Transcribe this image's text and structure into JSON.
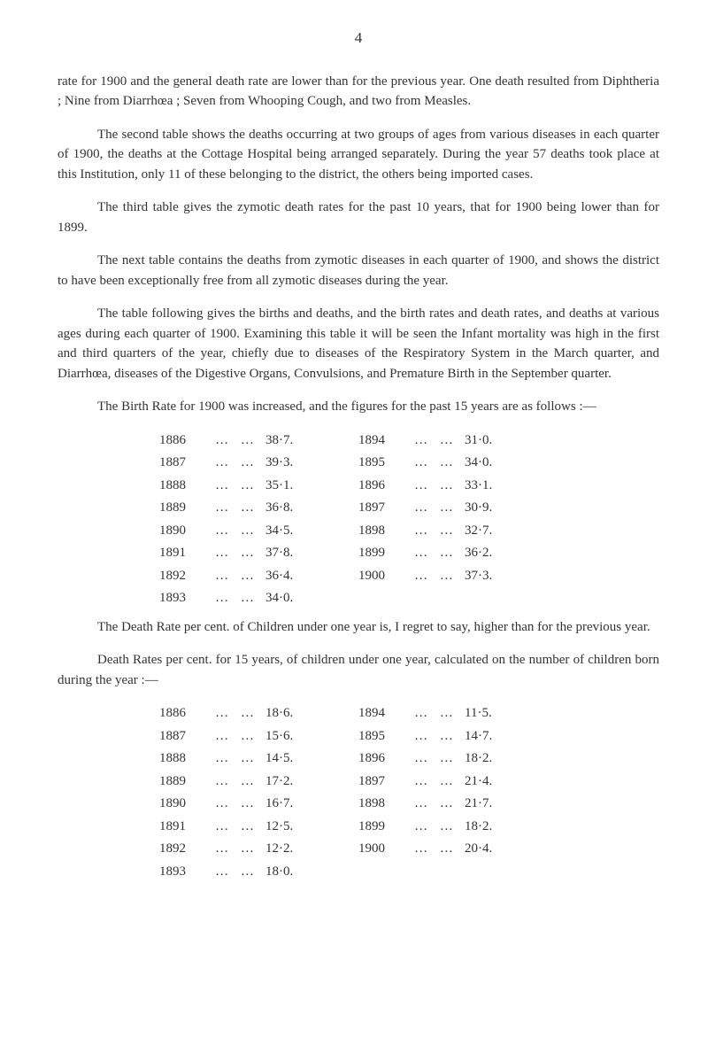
{
  "pageNumber": "4",
  "paragraphs": [
    "rate for 1900 and the general death rate are lower than for the previous year. One death resulted from Diphtheria ; Nine from Diarrhœa ; Seven from Whooping Cough, and two from Measles.",
    "The second table shows the deaths occurring at two groups of ages from various diseases in each quarter of 1900, the deaths at the Cottage Hospital being arranged separately. During the year 57 deaths took place at this Institution, only 11 of these belonging to the district, the others being imported cases.",
    "The third table gives the zymotic death rates for the past 10 years, that for 1900 being lower than for 1899.",
    "The next table contains the deaths from zymotic diseases in each quarter of 1900, and shows the district to have been exceptionally free from all zymotic diseases during the year.",
    "The table following gives the births and deaths, and the birth rates and death rates, and deaths at various ages during each quarter of 1900. Examining this table it will be seen the Infant mortality was high in the first and third quarters of the year, chiefly due to diseases of the Respiratory System in the March quarter, and Diarrhœa, diseases of the Digestive Organs, Convulsions, and Premature Birth in the September quarter.",
    "The Birth Rate for 1900 was increased, and the figures for the past 15 years are as follows :—",
    "The Death Rate per cent. of Children under one year is, I regret to say, higher than for the previous year.",
    "Death Rates per cent. for 15 years, of children under one year, calculated on the number of children born during the year :—"
  ],
  "birthRateTable": {
    "rows": [
      {
        "year1": "1886",
        "value1": "38·7.",
        "year2": "1894",
        "value2": "31·0."
      },
      {
        "year1": "1887",
        "value1": "39·3.",
        "year2": "1895",
        "value2": "34·0."
      },
      {
        "year1": "1888",
        "value1": "35·1.",
        "year2": "1896",
        "value2": "33·1."
      },
      {
        "year1": "1889",
        "value1": "36·8.",
        "year2": "1897",
        "value2": "30·9."
      },
      {
        "year1": "1890",
        "value1": "34·5.",
        "year2": "1898",
        "value2": "32·7."
      },
      {
        "year1": "1891",
        "value1": "37·8.",
        "year2": "1899",
        "value2": "36·2."
      },
      {
        "year1": "1892",
        "value1": "36·4.",
        "year2": "1900",
        "value2": "37·3."
      },
      {
        "year1": "1893",
        "value1": "34·0.",
        "year2": "",
        "value2": ""
      }
    ]
  },
  "deathRateTable": {
    "rows": [
      {
        "year1": "1886",
        "value1": "18·6.",
        "year2": "1894",
        "value2": "11·5."
      },
      {
        "year1": "1887",
        "value1": "15·6.",
        "year2": "1895",
        "value2": "14·7."
      },
      {
        "year1": "1888",
        "value1": "14·5.",
        "year2": "1896",
        "value2": "18·2."
      },
      {
        "year1": "1889",
        "value1": "17·2.",
        "year2": "1897",
        "value2": "21·4."
      },
      {
        "year1": "1890",
        "value1": "16·7.",
        "year2": "1898",
        "value2": "21·7."
      },
      {
        "year1": "1891",
        "value1": "12·5.",
        "year2": "1899",
        "value2": "18·2."
      },
      {
        "year1": "1892",
        "value1": "12·2.",
        "year2": "1900",
        "value2": "20·4."
      },
      {
        "year1": "1893",
        "value1": "18·0.",
        "year2": "",
        "value2": ""
      }
    ]
  },
  "dots": "… …"
}
